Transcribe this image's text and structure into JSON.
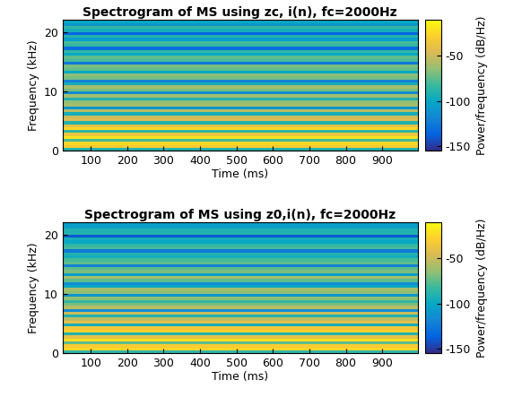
{
  "chart_data": [
    {
      "type": "heatmap",
      "title": "Spectrogram of MS using zc, i(n), fc=2000Hz",
      "x_label": "Time (ms)",
      "y_label": "Frequency (kHz)",
      "xlim": [
        23,
        997
      ],
      "xticks": [
        100,
        200,
        300,
        400,
        500,
        600,
        700,
        800,
        900
      ],
      "ylim": [
        0,
        22.05
      ],
      "yticks": [
        0,
        10,
        20
      ],
      "x_edges": [
        23,
        997
      ],
      "y_edges": [
        0,
        0.5,
        1,
        1.5,
        2,
        2.5,
        3,
        3.5,
        4,
        4.5,
        5,
        5.5,
        6,
        6.5,
        7,
        7.5,
        8,
        8.5,
        9,
        9.5,
        10,
        10.5,
        11,
        11.5,
        12,
        12.5,
        13,
        13.5,
        14,
        14.5,
        15,
        15.5,
        16,
        16.5,
        17,
        17.5,
        18,
        18.5,
        19,
        19.5,
        20,
        20.5,
        21,
        21.5,
        22.05
      ],
      "cells": [
        [
          -90
        ],
        [
          -30
        ],
        [
          -25
        ],
        [
          -80
        ],
        [
          -20
        ],
        [
          -35
        ],
        [
          -85
        ],
        [
          -25
        ],
        [
          -40
        ],
        [
          -90
        ],
        [
          -45
        ],
        [
          -50
        ],
        [
          -95
        ],
        [
          -55
        ],
        [
          -110
        ],
        [
          -60
        ],
        [
          -65
        ],
        [
          -90
        ],
        [
          -60
        ],
        [
          -115
        ],
        [
          -70
        ],
        [
          -60
        ],
        [
          -95
        ],
        [
          -120
        ],
        [
          -70
        ],
        [
          -65
        ],
        [
          -100
        ],
        [
          -75
        ],
        [
          -70
        ],
        [
          -125
        ],
        [
          -80
        ],
        [
          -75
        ],
        [
          -100
        ],
        [
          -85
        ],
        [
          -130
        ],
        [
          -85
        ],
        [
          -80
        ],
        [
          -105
        ],
        [
          -90
        ],
        [
          -135
        ],
        [
          -95
        ],
        [
          -85
        ],
        [
          -110
        ],
        [
          -100
        ]
      ],
      "colorbar_label": "Power/frequency (dB/Hz)",
      "colorbar_range": [
        -155,
        -10
      ],
      "colorbar_ticks": [
        -150,
        -100,
        -50
      ]
    },
    {
      "type": "heatmap",
      "title": "Spectrogram of MS using z0,i(n), fc=2000Hz",
      "x_label": "Time (ms)",
      "y_label": "Frequency (kHz)",
      "xlim": [
        23,
        997
      ],
      "xticks": [
        100,
        200,
        300,
        400,
        500,
        600,
        700,
        800,
        900
      ],
      "ylim": [
        0,
        22.05
      ],
      "yticks": [
        0,
        10,
        20
      ],
      "x_edges": [
        23,
        997
      ],
      "y_edges": [
        0,
        0.5,
        1,
        1.5,
        2,
        2.5,
        3,
        3.5,
        4,
        4.5,
        5,
        5.5,
        6,
        6.5,
        7,
        7.5,
        8,
        8.5,
        9,
        9.5,
        10,
        10.5,
        11,
        11.5,
        12,
        12.5,
        13,
        13.5,
        14,
        14.5,
        15,
        15.5,
        16,
        16.5,
        17,
        17.5,
        18,
        18.5,
        19,
        19.5,
        20,
        20.5,
        21,
        21.5,
        22.05
      ],
      "cells": [
        [
          -85
        ],
        [
          -25
        ],
        [
          -30
        ],
        [
          -75
        ],
        [
          -22
        ],
        [
          -40
        ],
        [
          -90
        ],
        [
          -28
        ],
        [
          -35
        ],
        [
          -95
        ],
        [
          -40
        ],
        [
          -55
        ],
        [
          -90
        ],
        [
          -50
        ],
        [
          -115
        ],
        [
          -55
        ],
        [
          -70
        ],
        [
          -85
        ],
        [
          -65
        ],
        [
          -110
        ],
        [
          -65
        ],
        [
          -60
        ],
        [
          -100
        ],
        [
          -115
        ],
        [
          -75
        ],
        [
          -60
        ],
        [
          -105
        ],
        [
          -70
        ],
        [
          -75
        ],
        [
          -120
        ],
        [
          -75
        ],
        [
          -80
        ],
        [
          -95
        ],
        [
          -90
        ],
        [
          -125
        ],
        [
          -80
        ],
        [
          -85
        ],
        [
          -100
        ],
        [
          -95
        ],
        [
          -140
        ],
        [
          -90
        ],
        [
          -90
        ],
        [
          -105
        ],
        [
          -105
        ]
      ],
      "colorbar_label": "Power/frequency (dB/Hz)",
      "colorbar_range": [
        -155,
        -10
      ],
      "colorbar_ticks": [
        -150,
        -100,
        -50
      ]
    }
  ]
}
